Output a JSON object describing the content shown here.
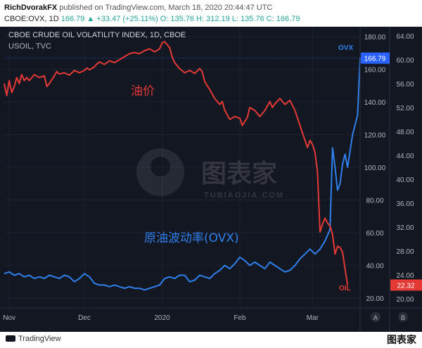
{
  "header": {
    "author": "RichDvorakFX",
    "published": "published on TradingView.com, March 18, 2020 20:44:47 UTC",
    "symbol": "CBOE:OVX, 1D",
    "last": "166.79",
    "change": "▲ +33.47 (+25.11%)",
    "ohlc": "O: 135.76  H: 312.19  L: 135.76  C: 166.79"
  },
  "chart_data": {
    "type": "line",
    "title": "CBOE CRUDE OIL VOLATILITY INDEX, 1D, CBOE",
    "subtitle": "USOIL, TVC",
    "x_labels": [
      {
        "label": "Nov",
        "day": 0
      },
      {
        "label": "Dec",
        "day": 30
      },
      {
        "label": "2020",
        "day": 61
      },
      {
        "label": "Feb",
        "day": 92
      },
      {
        "label": "Mar",
        "day": 121
      }
    ],
    "x_range": [
      -2,
      140
    ],
    "y_left": {
      "ticks": [
        180,
        160,
        140,
        120,
        100,
        80,
        60,
        40,
        20
      ],
      "labels": [
        "180.00",
        "160.00",
        "140.00",
        "120.00",
        "100.00",
        "80.00",
        "60.00",
        "40.00",
        "20.00"
      ],
      "ylim": [
        14,
        186
      ]
    },
    "y_right": {
      "ticks": [
        64,
        60,
        56,
        52,
        48,
        44,
        40,
        36,
        32,
        28,
        24,
        20
      ],
      "labels": [
        "64.00",
        "60.00",
        "56.00",
        "52.00",
        "48.00",
        "44.00",
        "40.00",
        "36.00",
        "32.00",
        "28.00",
        "24.00",
        "20.00"
      ],
      "ylim": [
        18.5,
        65.5
      ]
    },
    "series": [
      {
        "name": "OVX",
        "axis": "left",
        "color": "#2962ff",
        "annotation": "原油波动率(OVX)",
        "end_label": "OVX",
        "price_label": "166.79",
        "points": [
          [
            -2,
            35
          ],
          [
            0,
            36
          ],
          [
            2,
            34
          ],
          [
            4,
            35
          ],
          [
            6,
            33
          ],
          [
            8,
            34
          ],
          [
            10,
            32
          ],
          [
            12,
            33
          ],
          [
            14,
            32
          ],
          [
            16,
            34
          ],
          [
            18,
            33
          ],
          [
            20,
            32
          ],
          [
            22,
            34
          ],
          [
            24,
            33
          ],
          [
            26,
            30
          ],
          [
            28,
            32
          ],
          [
            30,
            35
          ],
          [
            32,
            33
          ],
          [
            34,
            29
          ],
          [
            36,
            28
          ],
          [
            38,
            28
          ],
          [
            40,
            27
          ],
          [
            42,
            28
          ],
          [
            44,
            27
          ],
          [
            46,
            26
          ],
          [
            48,
            27
          ],
          [
            50,
            26
          ],
          [
            52,
            26
          ],
          [
            54,
            25
          ],
          [
            56,
            26
          ],
          [
            58,
            27
          ],
          [
            60,
            28
          ],
          [
            62,
            32
          ],
          [
            64,
            33
          ],
          [
            66,
            32
          ],
          [
            68,
            34
          ],
          [
            70,
            34
          ],
          [
            72,
            30
          ],
          [
            74,
            31
          ],
          [
            76,
            34
          ],
          [
            78,
            33
          ],
          [
            80,
            32
          ],
          [
            82,
            35
          ],
          [
            84,
            37
          ],
          [
            86,
            40
          ],
          [
            88,
            38
          ],
          [
            90,
            41
          ],
          [
            92,
            45
          ],
          [
            94,
            43
          ],
          [
            96,
            40
          ],
          [
            98,
            42
          ],
          [
            100,
            40
          ],
          [
            102,
            38
          ],
          [
            104,
            42
          ],
          [
            106,
            40
          ],
          [
            108,
            38
          ],
          [
            110,
            36
          ],
          [
            112,
            37
          ],
          [
            114,
            40
          ],
          [
            116,
            44
          ],
          [
            118,
            47
          ],
          [
            120,
            50
          ],
          [
            122,
            47
          ],
          [
            124,
            50
          ],
          [
            126,
            55
          ],
          [
            128,
            62
          ],
          [
            129,
            112
          ],
          [
            130,
            100
          ],
          [
            131,
            86
          ],
          [
            132,
            90
          ],
          [
            133,
            102
          ],
          [
            134,
            108
          ],
          [
            135,
            100
          ],
          [
            136,
            110
          ],
          [
            137,
            120
          ],
          [
            138,
            126
          ],
          [
            139,
            132
          ],
          [
            140,
            167
          ]
        ]
      },
      {
        "name": "OIL",
        "axis": "right",
        "color": "#e53935",
        "annotation": "油价",
        "end_label": "OIL",
        "price_label": "22.32",
        "points": [
          [
            -2,
            56
          ],
          [
            -1,
            54
          ],
          [
            0,
            56.5
          ],
          [
            1,
            54.5
          ],
          [
            2,
            55.5
          ],
          [
            3,
            57
          ],
          [
            4,
            56
          ],
          [
            5,
            57.5
          ],
          [
            6,
            56.5
          ],
          [
            7,
            57
          ],
          [
            8,
            56.5
          ],
          [
            10,
            57.5
          ],
          [
            12,
            57
          ],
          [
            14,
            57.3
          ],
          [
            15,
            55.5
          ],
          [
            16,
            56
          ],
          [
            18,
            57.3
          ],
          [
            19,
            58
          ],
          [
            20,
            57.6
          ],
          [
            22,
            57.8
          ],
          [
            24,
            57.4
          ],
          [
            26,
            58.2
          ],
          [
            28,
            57.8
          ],
          [
            30,
            58.2
          ],
          [
            31,
            58.6
          ],
          [
            32,
            58.3
          ],
          [
            34,
            58.8
          ],
          [
            35,
            59.3
          ],
          [
            36,
            59.6
          ],
          [
            38,
            59.2
          ],
          [
            40,
            59.8
          ],
          [
            42,
            59.5
          ],
          [
            44,
            60
          ],
          [
            46,
            60.5
          ],
          [
            48,
            61
          ],
          [
            50,
            61.2
          ],
          [
            52,
            61
          ],
          [
            54,
            61.5
          ],
          [
            56,
            61.8
          ],
          [
            58,
            61.3
          ],
          [
            60,
            61.8
          ],
          [
            61,
            62.8
          ],
          [
            62,
            63
          ],
          [
            63,
            62.5
          ],
          [
            64,
            62
          ],
          [
            65,
            60.5
          ],
          [
            66,
            59.5
          ],
          [
            68,
            58.5
          ],
          [
            70,
            57.8
          ],
          [
            72,
            58.2
          ],
          [
            74,
            57.7
          ],
          [
            76,
            58.5
          ],
          [
            77,
            58
          ],
          [
            78,
            56.3
          ],
          [
            80,
            55
          ],
          [
            82,
            53.5
          ],
          [
            84,
            52.5
          ],
          [
            85,
            53
          ],
          [
            86,
            51.5
          ],
          [
            88,
            50
          ],
          [
            90,
            50.5
          ],
          [
            92,
            50.2
          ],
          [
            93,
            49
          ],
          [
            95,
            50.3
          ],
          [
            96,
            52
          ],
          [
            98,
            51.5
          ],
          [
            100,
            50.5
          ],
          [
            102,
            51.5
          ],
          [
            104,
            53
          ],
          [
            105,
            52
          ],
          [
            106,
            52.6
          ],
          [
            108,
            53.5
          ],
          [
            110,
            52.5
          ],
          [
            112,
            53.2
          ],
          [
            114,
            51.5
          ],
          [
            116,
            49
          ],
          [
            118,
            46.5
          ],
          [
            119,
            45.3
          ],
          [
            120,
            46.5
          ],
          [
            121,
            45.8
          ],
          [
            122,
            44.5
          ],
          [
            123,
            41.2
          ],
          [
            124,
            31.2
          ],
          [
            125,
            32.5
          ],
          [
            126,
            33.5
          ],
          [
            127,
            32.7
          ],
          [
            128,
            32.2
          ],
          [
            129,
            30.8
          ],
          [
            130,
            27.5
          ],
          [
            131,
            28.8
          ],
          [
            132,
            28.6
          ],
          [
            133,
            27.8
          ],
          [
            134,
            25
          ],
          [
            135,
            22.32
          ]
        ]
      }
    ],
    "legend": "none",
    "grid": true
  },
  "watermark": {
    "cn": "图表家",
    "en": "TUBIAOJIA.COM"
  },
  "axis_buttons": {
    "left": "A",
    "right": "B"
  },
  "footer": {
    "logo": "TradingView",
    "brand": "图表家"
  },
  "colors": {
    "background": "#131722",
    "grid": "#1e222d",
    "axis_text": "#b2b5be",
    "ovx": "#2962ff",
    "oil": "#e53935"
  }
}
